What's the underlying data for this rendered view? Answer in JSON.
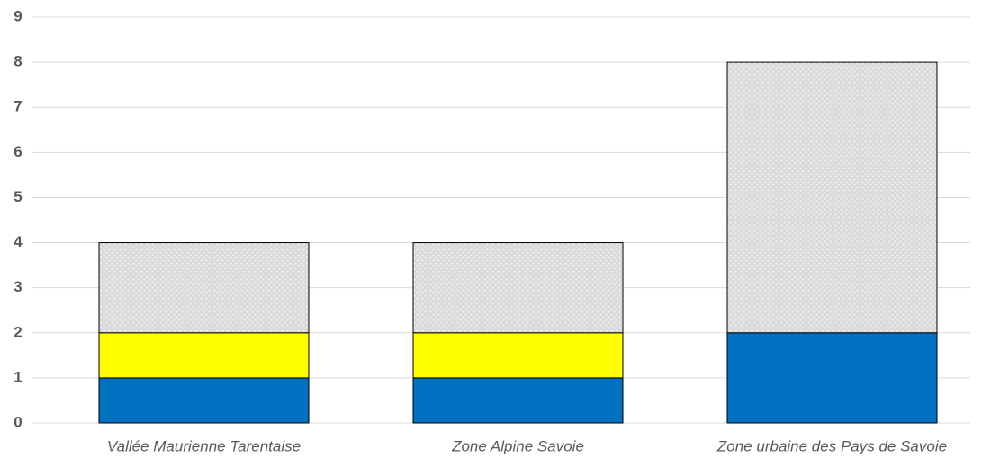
{
  "chart_data": {
    "type": "stacked_bar",
    "categories": [
      "Vallée Maurienne Tarentaise",
      "Zone Alpine Savoie",
      "Zone urbaine des Pays de Savoie"
    ],
    "series": [
      {
        "color": "#0070c0",
        "values": [
          1,
          1,
          2
        ]
      },
      {
        "color": "#ffff00",
        "values": [
          1,
          1,
          0
        ]
      },
      {
        "color": "#d9d9d9",
        "pattern": "dots",
        "values": [
          2,
          2,
          6
        ]
      }
    ],
    "ylim": [
      0,
      9
    ],
    "yticks": [
      0,
      1,
      2,
      3,
      4,
      5,
      6,
      7,
      8,
      9
    ],
    "grid": true
  }
}
